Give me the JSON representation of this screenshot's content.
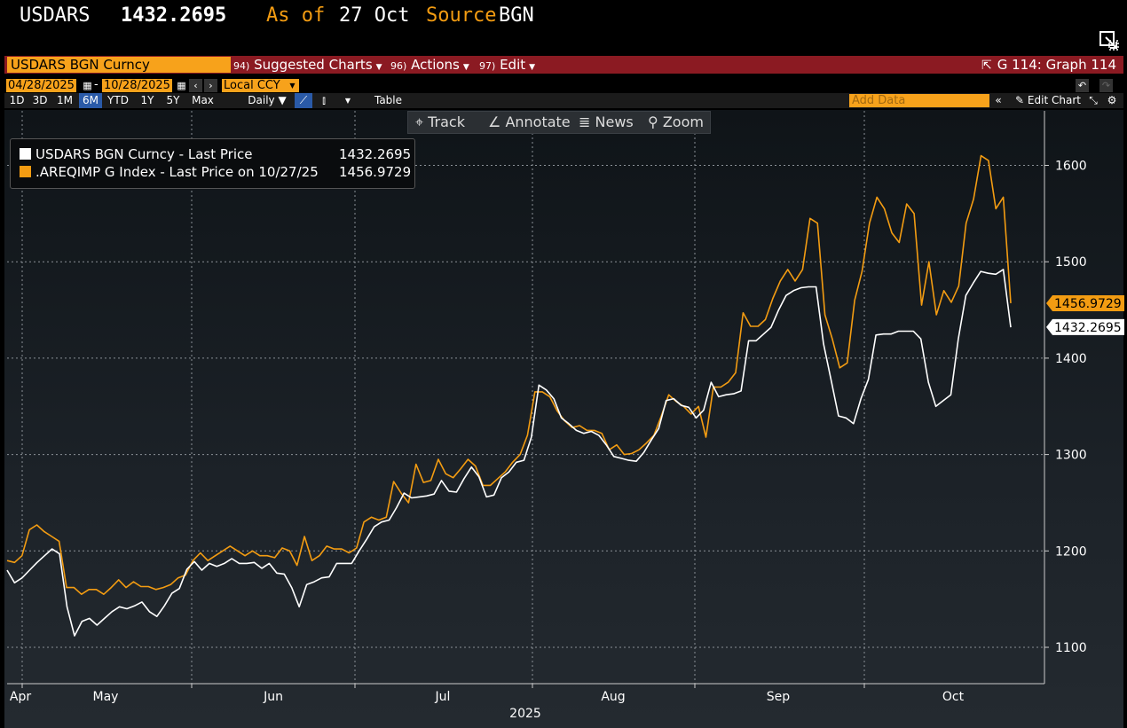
{
  "header": {
    "ticker": "USDARS",
    "price": "1432.2695",
    "as_of_label": "As of",
    "as_of_value": "27 Oct",
    "source_label": "Source",
    "source_value": "BGN"
  },
  "menu": {
    "security": "USDARS BGN Curncy",
    "suggested": {
      "num": "94)",
      "label": "Suggested Charts"
    },
    "actions": {
      "num": "96)",
      "label": "Actions"
    },
    "edit": {
      "num": "97)",
      "label": "Edit"
    },
    "graph_title": "G 114: Graph 114"
  },
  "controls": {
    "start_date": "04/28/2025",
    "dash": "-",
    "end_date": "10/28/2025",
    "currency": "Local CCY",
    "ranges": [
      "1D",
      "3D",
      "1M",
      "6M",
      "YTD",
      "1Y",
      "5Y",
      "Max"
    ],
    "active_range": "6M",
    "frequency": "Daily ▼",
    "table_label": "Table",
    "add_data_placeholder": "Add Data",
    "edit_chart_label": "Edit Chart"
  },
  "toolbar": {
    "track": "Track",
    "annotate": "Annotate",
    "news": "News",
    "zoom": "Zoom"
  },
  "legend": {
    "items": [
      {
        "label": "USDARS BGN Curncy - Last Price",
        "value": "1432.2695",
        "color": "#ffffff"
      },
      {
        "label": ".AREQIMP G Index - Last Price on 10/27/25",
        "value": "1456.9729",
        "color": "#f39c12"
      }
    ]
  },
  "colors": {
    "accent": "#f39c12",
    "menu_bar": "#8b1a22",
    "active_range": "#2a5aa8"
  },
  "chart_data": {
    "type": "line",
    "x_ticks": [
      "Apr",
      "May",
      "Jun",
      "Jul",
      "Aug",
      "Sep",
      "Oct"
    ],
    "year_label": "2025",
    "y_ticks": [
      1100,
      1200,
      1300,
      1400,
      1500,
      1600
    ],
    "ylim": [
      1060,
      1650
    ],
    "grid": true,
    "y_axis_side": "right",
    "last_value_labels": [
      "1456.9729",
      "1432.2695"
    ],
    "series": [
      {
        "name": "USDARS BGN Curncy - Last Price",
        "color": "#ffffff",
        "values": [
          1180,
          1167,
          1172,
          1180,
          1188,
          1195,
          1202,
          1197,
          1142,
          1112,
          1127,
          1130,
          1123,
          1130,
          1137,
          1142,
          1140,
          1143,
          1147,
          1137,
          1132,
          1143,
          1156,
          1161,
          1181,
          1189,
          1180,
          1187,
          1184,
          1187,
          1192,
          1187,
          1187,
          1188,
          1182,
          1187,
          1177,
          1176,
          1162,
          1142,
          1165,
          1168,
          1172,
          1173,
          1187,
          1187,
          1187,
          1200,
          1212,
          1225,
          1230,
          1232,
          1245,
          1260,
          1255,
          1256,
          1257,
          1259,
          1273,
          1262,
          1261,
          1275,
          1287,
          1277,
          1256,
          1258,
          1276,
          1282,
          1292,
          1294,
          1318,
          1372,
          1367,
          1358,
          1338,
          1332,
          1325,
          1322,
          1324,
          1320,
          1310,
          1298,
          1296,
          1294,
          1293,
          1302,
          1315,
          1327,
          1356,
          1358,
          1351,
          1349,
          1338,
          1346,
          1375,
          1360,
          1362,
          1363,
          1366,
          1418,
          1418,
          1425,
          1432,
          1450,
          1465,
          1470,
          1473,
          1474,
          1474,
          1415,
          1378,
          1340,
          1338,
          1332,
          1358,
          1378,
          1424,
          1425,
          1425,
          1428,
          1428,
          1428,
          1420,
          1375,
          1350,
          1356,
          1362,
          1420,
          1465,
          1478,
          1490,
          1488,
          1487,
          1492,
          1432
        ]
      },
      {
        "name": ".AREQIMP G Index - Last Price on 10/27/25",
        "color": "#f39c12",
        "values": [
          1190,
          1188,
          1195,
          1222,
          1227,
          1220,
          1215,
          1210,
          1162,
          1162,
          1155,
          1160,
          1160,
          1155,
          1162,
          1170,
          1162,
          1168,
          1163,
          1163,
          1160,
          1162,
          1165,
          1172,
          1175,
          1190,
          1198,
          1190,
          1195,
          1200,
          1205,
          1200,
          1195,
          1200,
          1195,
          1195,
          1193,
          1203,
          1200,
          1185,
          1215,
          1190,
          1195,
          1205,
          1202,
          1202,
          1198,
          1203,
          1230,
          1235,
          1232,
          1235,
          1272,
          1260,
          1250,
          1290,
          1271,
          1273,
          1295,
          1280,
          1276,
          1285,
          1295,
          1288,
          1268,
          1268,
          1275,
          1282,
          1292,
          1300,
          1320,
          1365,
          1365,
          1360,
          1345,
          1335,
          1328,
          1330,
          1325,
          1325,
          1322,
          1305,
          1310,
          1300,
          1301,
          1305,
          1312,
          1320,
          1340,
          1362,
          1355,
          1350,
          1342,
          1350,
          1318,
          1370,
          1370,
          1375,
          1385,
          1447,
          1433,
          1433,
          1440,
          1462,
          1480,
          1492,
          1480,
          1492,
          1545,
          1540,
          1445,
          1420,
          1390,
          1395,
          1460,
          1490,
          1540,
          1567,
          1555,
          1530,
          1520,
          1560,
          1550,
          1455,
          1500,
          1445,
          1470,
          1458,
          1475,
          1540,
          1565,
          1610,
          1605,
          1555,
          1567,
          1457
        ]
      }
    ]
  }
}
